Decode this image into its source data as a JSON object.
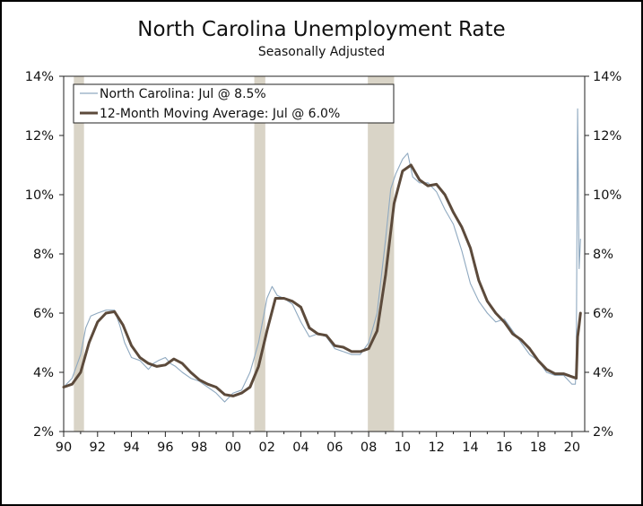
{
  "chart_data": {
    "type": "line",
    "title": "North Carolina Unemployment Rate",
    "subtitle": "Seasonally Adjusted",
    "xlabel": "",
    "ylabel": "",
    "xlim": [
      1990,
      2020.75
    ],
    "ylim": [
      2,
      14
    ],
    "x_tick_labels": [
      "90",
      "92",
      "94",
      "96",
      "98",
      "00",
      "02",
      "04",
      "06",
      "08",
      "10",
      "12",
      "14",
      "16",
      "18",
      "20"
    ],
    "y_tick_labels": [
      "2%",
      "4%",
      "6%",
      "8%",
      "10%",
      "12%",
      "14%"
    ],
    "recessions": [
      [
        1990.6,
        1991.2
      ],
      [
        2001.25,
        2001.9
      ],
      [
        2007.95,
        2009.5
      ]
    ],
    "legend": [
      "North Carolina: Jul @ 8.5%",
      "12-Month Moving Average: Jul @ 6.0%"
    ],
    "legend_position": "top-left",
    "colors": {
      "series1": "#8fa9c0",
      "series2": "#5c4a3b",
      "recession": "#d9d4c7"
    },
    "series": [
      {
        "name": "North Carolina",
        "x": [
          1990.0,
          1990.5,
          1991.0,
          1991.3,
          1991.6,
          1992.0,
          1992.5,
          1993.0,
          1993.3,
          1993.6,
          1994.0,
          1994.5,
          1995.0,
          1995.3,
          1995.6,
          1996.0,
          1996.3,
          1996.6,
          1997.0,
          1997.5,
          1998.0,
          1998.5,
          1999.0,
          1999.5,
          2000.0,
          2000.5,
          2001.0,
          2001.5,
          2002.0,
          2002.3,
          2002.6,
          2003.0,
          2003.5,
          2004.0,
          2004.5,
          2005.0,
          2005.5,
          2006.0,
          2006.5,
          2007.0,
          2007.5,
          2008.0,
          2008.5,
          2009.0,
          2009.3,
          2009.6,
          2010.0,
          2010.3,
          2010.6,
          2011.0,
          2011.5,
          2012.0,
          2012.5,
          2013.0,
          2013.5,
          2014.0,
          2014.5,
          2015.0,
          2015.5,
          2016.0,
          2016.5,
          2017.0,
          2017.5,
          2018.0,
          2018.5,
          2019.0,
          2019.5,
          2020.0,
          2020.2,
          2020.25,
          2020.33,
          2020.42,
          2020.5
        ],
        "values": [
          3.5,
          3.8,
          4.6,
          5.5,
          5.9,
          6.0,
          6.1,
          6.1,
          5.6,
          5.0,
          4.5,
          4.4,
          4.1,
          4.3,
          4.4,
          4.5,
          4.3,
          4.2,
          4.0,
          3.8,
          3.7,
          3.5,
          3.3,
          3.0,
          3.3,
          3.4,
          4.0,
          5.0,
          6.5,
          6.9,
          6.6,
          6.5,
          6.3,
          5.7,
          5.2,
          5.3,
          5.2,
          4.8,
          4.7,
          4.6,
          4.6,
          5.0,
          6.0,
          8.5,
          10.2,
          10.7,
          11.2,
          11.4,
          10.6,
          10.4,
          10.4,
          10.1,
          9.5,
          9.0,
          8.1,
          7.0,
          6.4,
          6.0,
          5.7,
          5.8,
          5.4,
          5.0,
          4.6,
          4.4,
          4.0,
          3.9,
          3.9,
          3.6,
          3.6,
          4.5,
          12.9,
          7.5,
          8.5
        ]
      },
      {
        "name": "12-Month Moving Average",
        "x": [
          1990.0,
          1990.5,
          1991.0,
          1991.5,
          1992.0,
          1992.5,
          1993.0,
          1993.5,
          1994.0,
          1994.5,
          1995.0,
          1995.5,
          1996.0,
          1996.5,
          1997.0,
          1997.5,
          1998.0,
          1998.5,
          1999.0,
          1999.5,
          2000.0,
          2000.5,
          2001.0,
          2001.5,
          2002.0,
          2002.5,
          2003.0,
          2003.5,
          2004.0,
          2004.5,
          2005.0,
          2005.5,
          2006.0,
          2006.5,
          2007.0,
          2007.5,
          2008.0,
          2008.5,
          2009.0,
          2009.5,
          2010.0,
          2010.5,
          2011.0,
          2011.5,
          2012.0,
          2012.5,
          2013.0,
          2013.5,
          2014.0,
          2014.5,
          2015.0,
          2015.5,
          2016.0,
          2016.5,
          2017.0,
          2017.5,
          2018.0,
          2018.5,
          2019.0,
          2019.5,
          2020.0,
          2020.25,
          2020.33,
          2020.42,
          2020.5
        ],
        "values": [
          3.5,
          3.6,
          4.0,
          5.0,
          5.7,
          6.0,
          6.05,
          5.6,
          4.9,
          4.5,
          4.3,
          4.2,
          4.25,
          4.45,
          4.3,
          4.0,
          3.75,
          3.6,
          3.5,
          3.25,
          3.2,
          3.3,
          3.5,
          4.2,
          5.4,
          6.5,
          6.5,
          6.4,
          6.2,
          5.5,
          5.3,
          5.25,
          4.9,
          4.85,
          4.7,
          4.7,
          4.8,
          5.4,
          7.3,
          9.7,
          10.8,
          11.0,
          10.5,
          10.3,
          10.35,
          10.0,
          9.4,
          8.9,
          8.2,
          7.1,
          6.4,
          6.0,
          5.7,
          5.3,
          5.1,
          4.8,
          4.4,
          4.1,
          3.95,
          3.95,
          3.85,
          3.8,
          5.2,
          5.6,
          6.0
        ]
      }
    ]
  }
}
